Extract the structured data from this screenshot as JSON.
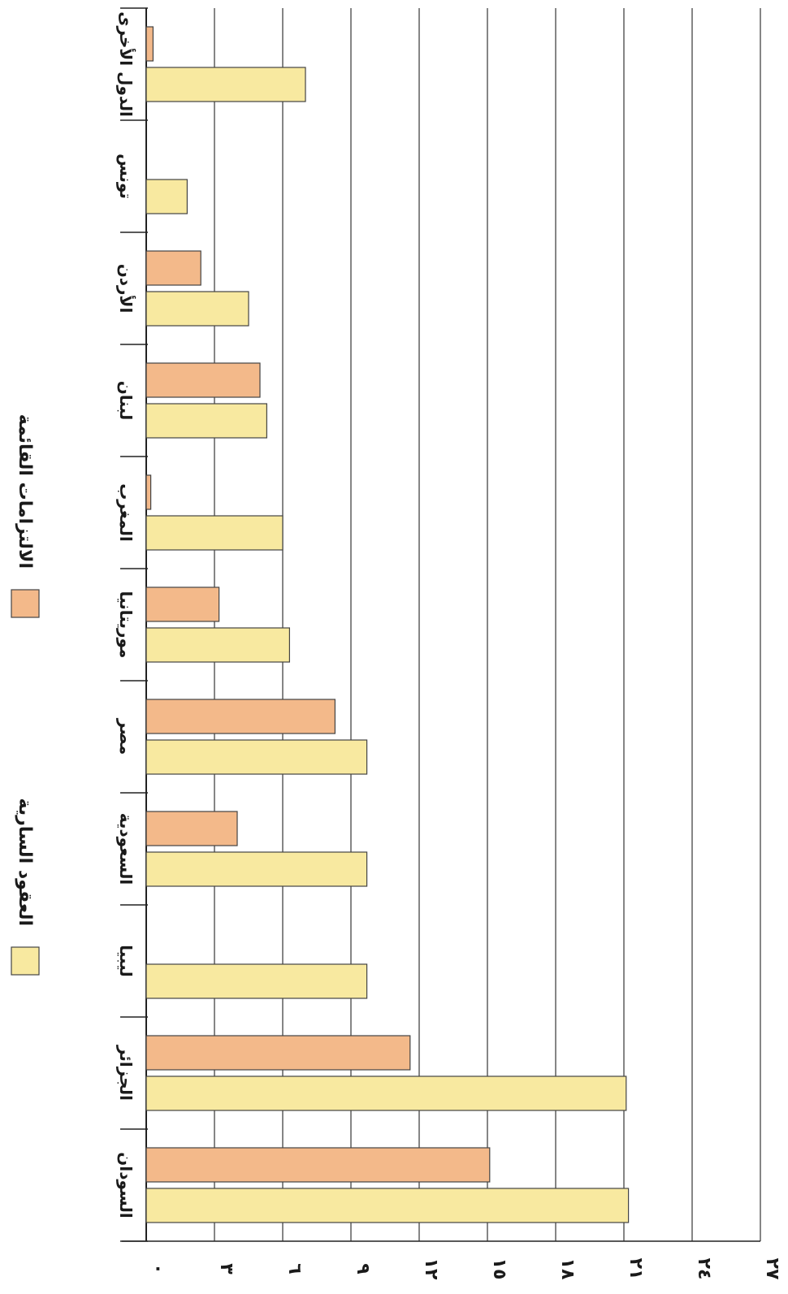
{
  "chart_data": {
    "type": "bar",
    "orientation": "horizontal",
    "categories": [
      "السودان",
      "الجزائر",
      "ليبيا",
      "السعودية",
      "مصر",
      "موريتانيا",
      "المغرب",
      "لبنان",
      "الأردن",
      "تونس",
      "الدول الأخرى"
    ],
    "series": [
      {
        "name": "العقود السارية",
        "color": "#f8e9a0",
        "values": [
          21.2,
          21.1,
          9.7,
          9.7,
          9.7,
          6.3,
          6.0,
          5.3,
          4.5,
          1.8,
          7.0
        ]
      },
      {
        "name": "الالتزامات القائمة",
        "color": "#f3b98a",
        "values": [
          15.1,
          11.6,
          null,
          4.0,
          8.3,
          3.2,
          0.2,
          5.0,
          2.4,
          null,
          0.3
        ]
      }
    ],
    "ticks": [
      "٠",
      "٣",
      "٦",
      "٩",
      "١٢",
      "١٥",
      "١٨",
      "٢١",
      "٢٤",
      "٢٧"
    ],
    "xlim": [
      0,
      27
    ],
    "grid": true,
    "legend_position": "left"
  }
}
